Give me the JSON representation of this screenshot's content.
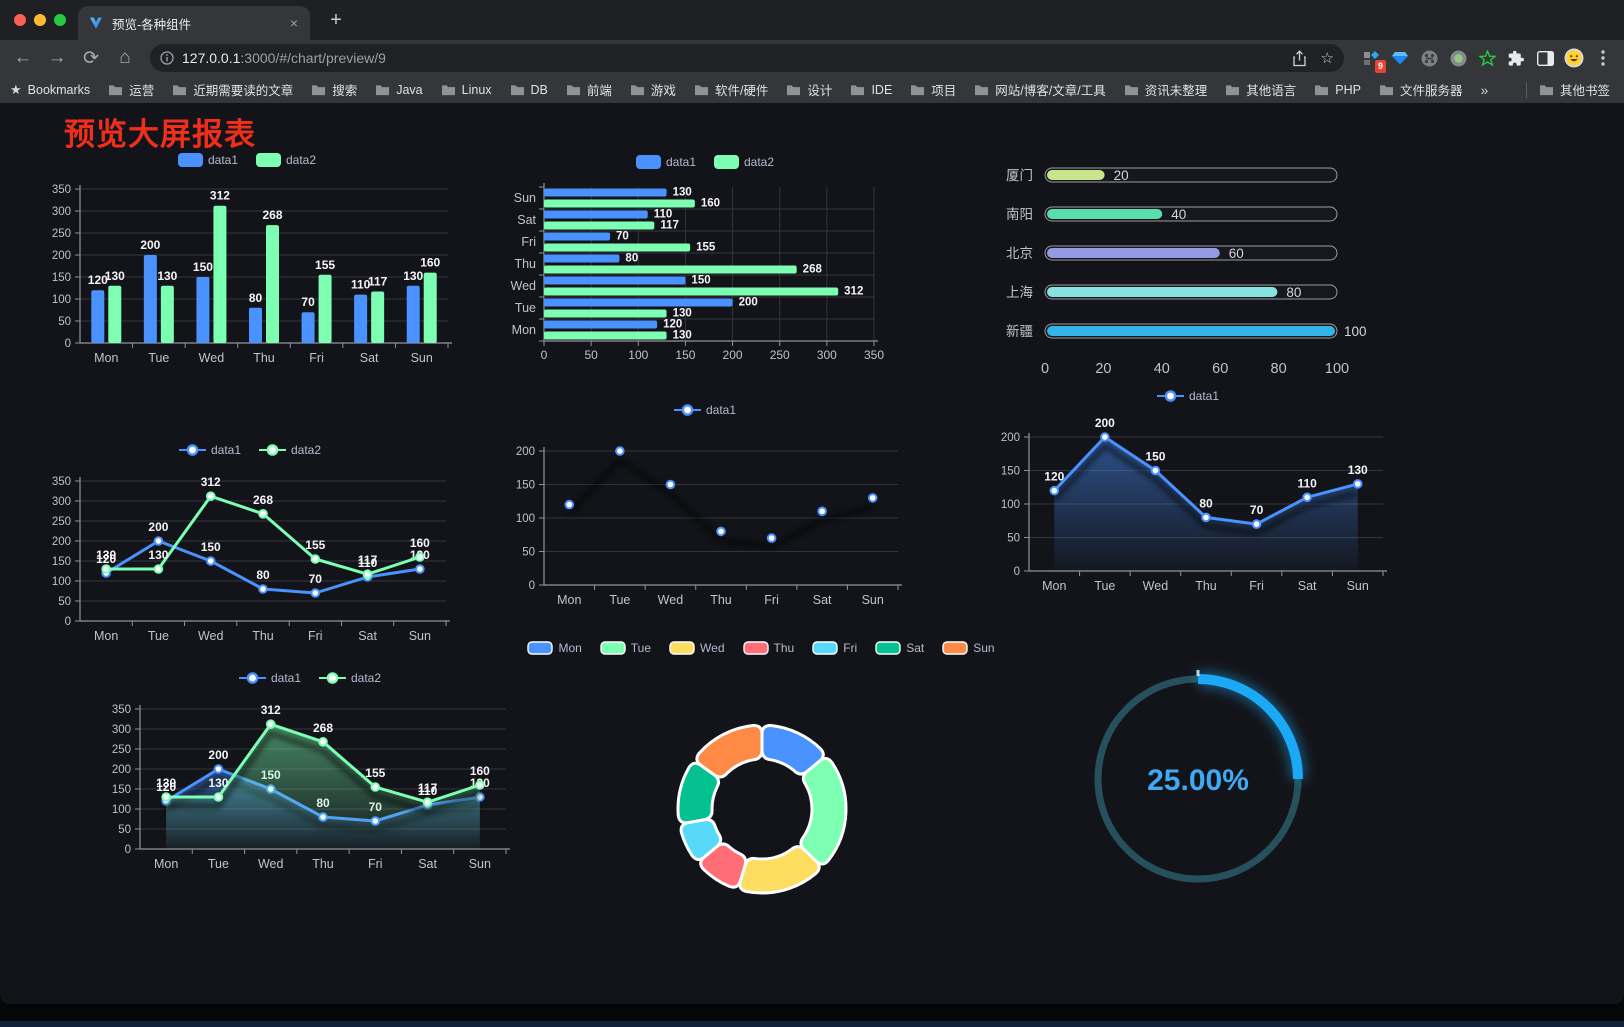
{
  "browser": {
    "tab_title": "预览-各种组件",
    "url_host": "127.0.0.1",
    "url_rest": ":3000/#/chart/preview/9",
    "close_glyph": "×",
    "new_tab_glyph": "+",
    "back_glyph": "←",
    "forward_glyph": "→",
    "reload_glyph": "⟳",
    "home_glyph": "⌂",
    "star_glyph": "☆",
    "bookmarks_label": "Bookmarks",
    "bookmarks_star_glyph": "★",
    "bookmarks": [
      "运营",
      "近期需要读的文章",
      "搜索",
      "Java",
      "Linux",
      "DB",
      "前端",
      "游戏",
      "软件/硬件",
      "设计",
      "IDE",
      "项目",
      "网站/博客/文章/工具",
      "资讯未整理",
      "其他语言",
      "PHP",
      "文件服务器"
    ],
    "bookmarks_overflow": "»",
    "other_bookmarks": "其他书签",
    "extension_badge": "9"
  },
  "page": {
    "title": "预览大屏报表"
  },
  "chart_data": [
    {
      "type": "bar",
      "legend": [
        "data1",
        "data2"
      ],
      "categories": [
        "Mon",
        "Tue",
        "Wed",
        "Thu",
        "Fri",
        "Sat",
        "Sun"
      ],
      "series": [
        {
          "name": "data1",
          "color": "#4992ff",
          "values": [
            120,
            200,
            150,
            80,
            70,
            110,
            130
          ]
        },
        {
          "name": "data2",
          "color": "#7cffb2",
          "values": [
            130,
            130,
            312,
            268,
            155,
            117,
            160
          ]
        }
      ],
      "ylim": [
        0,
        350
      ],
      "ystep": 50,
      "value_labels": true,
      "grid": true
    },
    {
      "type": "hbar",
      "legend": [
        "data1",
        "data2"
      ],
      "categories": [
        "Sun",
        "Sat",
        "Fri",
        "Thu",
        "Wed",
        "Tue",
        "Mon"
      ],
      "series": [
        {
          "name": "data1",
          "color": "#4992ff",
          "values": [
            130,
            110,
            70,
            80,
            150,
            200,
            120
          ]
        },
        {
          "name": "data2",
          "color": "#7cffb2",
          "values": [
            160,
            117,
            155,
            268,
            312,
            130,
            130
          ]
        }
      ],
      "xlim": [
        0,
        350
      ],
      "xstep": 50,
      "value_labels": true,
      "grid": true
    },
    {
      "type": "progress",
      "items": [
        {
          "label": "厦门",
          "value": 20,
          "color": "#c8e58c"
        },
        {
          "label": "南阳",
          "value": 40,
          "color": "#58dfad"
        },
        {
          "label": "北京",
          "value": 60,
          "color": "#939be5"
        },
        {
          "label": "上海",
          "value": 80,
          "color": "#86e3e0"
        },
        {
          "label": "新疆",
          "value": 100,
          "color": "#33b4e9"
        }
      ],
      "xlim": [
        0,
        100
      ],
      "xticks": [
        0,
        20,
        40,
        60,
        80,
        100
      ]
    },
    {
      "type": "line",
      "legend": [
        "data1",
        "data2"
      ],
      "categories": [
        "Mon",
        "Tue",
        "Wed",
        "Thu",
        "Fri",
        "Sat",
        "Sun"
      ],
      "series": [
        {
          "name": "data1",
          "color": "#4992ff",
          "values": [
            120,
            200,
            150,
            80,
            70,
            110,
            130
          ]
        },
        {
          "name": "data2",
          "color": "#7cffb2",
          "values": [
            130,
            130,
            312,
            268,
            155,
            117,
            160
          ]
        }
      ],
      "ylim": [
        0,
        350
      ],
      "ystep": 50,
      "value_labels": true
    },
    {
      "type": "line",
      "legend": [
        "data1"
      ],
      "categories": [
        "Mon",
        "Tue",
        "Wed",
        "Thu",
        "Fri",
        "Sat",
        "Sun"
      ],
      "series": [
        {
          "name": "data1",
          "color": "#4992ff",
          "gradient": [
            "#4992ff",
            "#7cffb2"
          ],
          "values": [
            120,
            200,
            150,
            80,
            70,
            110,
            130
          ]
        }
      ],
      "ylim": [
        0,
        200
      ],
      "ystep": 50,
      "value_labels": false,
      "shadow": true
    },
    {
      "type": "line",
      "legend": [
        "data1"
      ],
      "categories": [
        "Mon",
        "Tue",
        "Wed",
        "Thu",
        "Fri",
        "Sat",
        "Sun"
      ],
      "series": [
        {
          "name": "data1",
          "color": "#4992ff",
          "area": true,
          "values": [
            120,
            200,
            150,
            80,
            70,
            110,
            130
          ]
        }
      ],
      "ylim": [
        0,
        200
      ],
      "ystep": 50,
      "value_labels": true,
      "shadow": true
    },
    {
      "type": "line",
      "legend": [
        "data1",
        "data2"
      ],
      "categories": [
        "Mon",
        "Tue",
        "Wed",
        "Thu",
        "Fri",
        "Sat",
        "Sun"
      ],
      "series": [
        {
          "name": "data1",
          "color": "#4992ff",
          "area": true,
          "values": [
            120,
            200,
            150,
            80,
            70,
            110,
            130
          ]
        },
        {
          "name": "data2",
          "color": "#7cffb2",
          "area": true,
          "values": [
            130,
            130,
            312,
            268,
            155,
            117,
            160
          ]
        }
      ],
      "ylim": [
        0,
        350
      ],
      "ystep": 50,
      "value_labels": true,
      "shadow": true
    },
    {
      "type": "pie",
      "legend": [
        "Mon",
        "Tue",
        "Wed",
        "Thu",
        "Fri",
        "Sat",
        "Sun"
      ],
      "categories": [
        "Mon",
        "Tue",
        "Wed",
        "Thu",
        "Fri",
        "Sat",
        "Sun"
      ],
      "values": [
        120,
        200,
        150,
        80,
        70,
        110,
        130
      ],
      "colors": [
        "#4992ff",
        "#7cffb2",
        "#fddd60",
        "#ff6e76",
        "#58d9f9",
        "#05c091",
        "#ff8a45"
      ],
      "donut": true
    },
    {
      "type": "gauge",
      "value": 25,
      "text": "25.00%",
      "color": "#1ba9f5",
      "track_color": "#25505c",
      "text_color": "#3fa9f3"
    }
  ]
}
